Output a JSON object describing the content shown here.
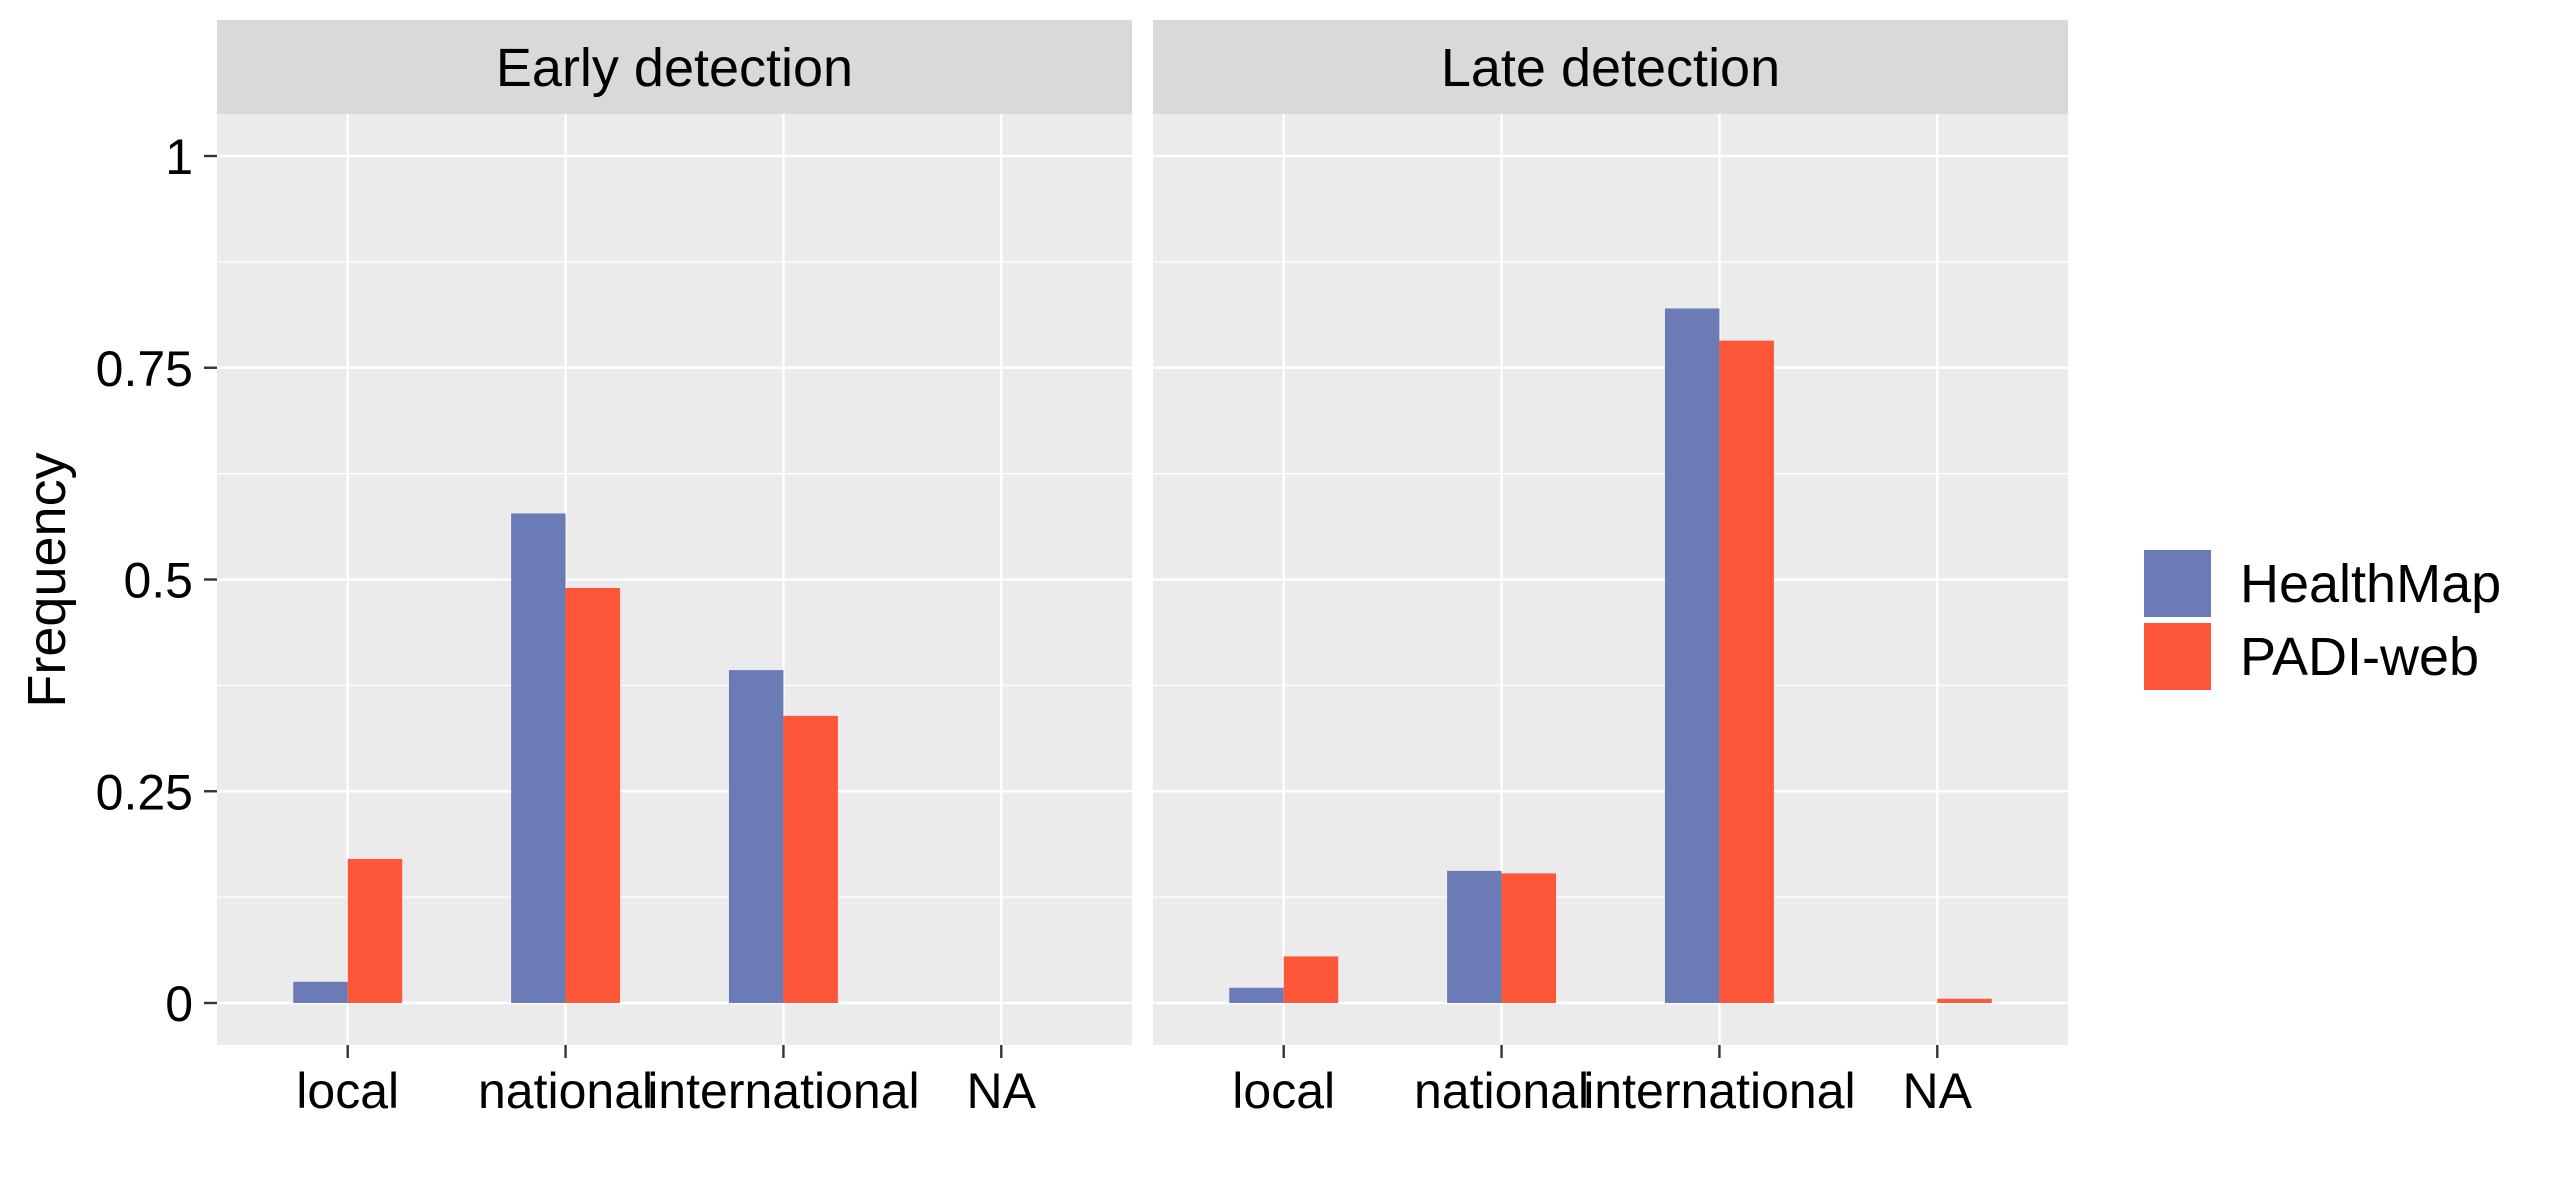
{
  "chart_data": {
    "type": "bar",
    "ylabel": "Frequency",
    "ylim": [
      0,
      1.05
    ],
    "y_ticks": [
      {
        "value": 0,
        "label": "0"
      },
      {
        "value": 0.25,
        "label": "0.25"
      },
      {
        "value": 0.5,
        "label": "0.5"
      },
      {
        "value": 0.75,
        "label": "0.75"
      },
      {
        "value": 1,
        "label": "1"
      }
    ],
    "categories": [
      "local",
      "national",
      "international",
      "NA"
    ],
    "legend": {
      "position": "right",
      "entries": [
        {
          "name": "HealthMap",
          "color": "#6b7bb6"
        },
        {
          "name": "PADI-web",
          "color": "#fd5638"
        }
      ]
    },
    "grid": true,
    "panels": [
      {
        "title": "Early detection",
        "series": [
          {
            "name": "HealthMap",
            "values": [
              0.025,
              0.578,
              0.393,
              null
            ]
          },
          {
            "name": "PADI-web",
            "values": [
              0.17,
              0.49,
              0.339,
              null
            ]
          }
        ]
      },
      {
        "title": "Late detection",
        "series": [
          {
            "name": "HealthMap",
            "values": [
              0.018,
              0.156,
              0.82,
              null
            ]
          },
          {
            "name": "PADI-web",
            "values": [
              0.055,
              0.153,
              0.782,
              0.005
            ]
          }
        ]
      }
    ],
    "colors": {
      "panel_background": "#ebebeb",
      "strip_background": "#d9d9d9",
      "gridline": "#ffffff",
      "tick": "#333333"
    }
  }
}
